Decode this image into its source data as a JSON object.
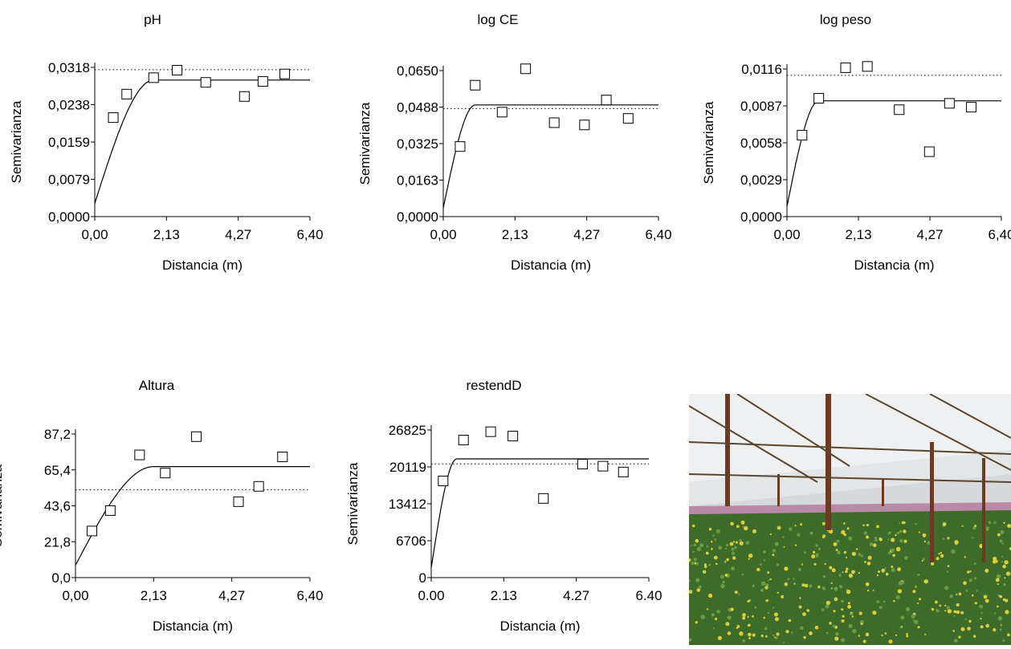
{
  "chart_data": [
    {
      "type": "scatter",
      "title": "pH",
      "xlabel": "Distancia (m)",
      "ylabel": "Semivarianza",
      "x_ticks": [
        "0,00",
        "2,13",
        "4,27",
        "6,40"
      ],
      "y_ticks": [
        "0,0000",
        "0,0079",
        "0,0159",
        "0,0238",
        "0,0318"
      ],
      "xlim": [
        0,
        6.4
      ],
      "ylim": [
        0,
        0.0318
      ],
      "points": [
        [
          0.55,
          0.0211
        ],
        [
          0.95,
          0.0261
        ],
        [
          1.75,
          0.0296
        ],
        [
          2.45,
          0.0312
        ],
        [
          3.3,
          0.0286
        ],
        [
          4.45,
          0.0256
        ],
        [
          5.0,
          0.0288
        ],
        [
          5.65,
          0.0304
        ]
      ],
      "model": {
        "nugget": 0.0028,
        "sill": 0.0291,
        "range": 1.75
      },
      "reference_line": 0.0313
    },
    {
      "type": "scatter",
      "title": "log CE",
      "xlabel": "Distancia (m)",
      "ylabel": "Semivarianza",
      "x_ticks": [
        "0,00",
        "2,13",
        "4,27",
        "6,40"
      ],
      "y_ticks": [
        "0,0000",
        "0,0163",
        "0,0325",
        "0,0488",
        "0,0650"
      ],
      "xlim": [
        0,
        6.4
      ],
      "ylim": [
        0,
        0.065
      ],
      "points": [
        [
          0.5,
          0.0312
        ],
        [
          0.95,
          0.0585
        ],
        [
          1.75,
          0.0465
        ],
        [
          2.45,
          0.0658
        ],
        [
          3.3,
          0.0418
        ],
        [
          4.2,
          0.0408
        ],
        [
          4.85,
          0.0519
        ],
        [
          5.5,
          0.0437
        ]
      ],
      "model": {
        "nugget": 0.0038,
        "sill": 0.0497,
        "range": 0.95
      },
      "reference_line": 0.0481
    },
    {
      "type": "scatter",
      "title": "log peso",
      "xlabel": "Distancia (m)",
      "ylabel": "Semivarianza",
      "x_ticks": [
        "0,00",
        "2,13",
        "4,27",
        "6,40"
      ],
      "y_ticks": [
        "0,0000",
        "0,0029",
        "0,0058",
        "0,0087",
        "0,0116"
      ],
      "xlim": [
        0,
        6.4
      ],
      "ylim": [
        0,
        0.0116
      ],
      "points": [
        [
          0.45,
          0.0064
        ],
        [
          0.95,
          0.0093
        ],
        [
          1.75,
          0.0117
        ],
        [
          2.4,
          0.0118
        ],
        [
          3.35,
          0.0084
        ],
        [
          4.25,
          0.0051
        ],
        [
          4.85,
          0.0089
        ],
        [
          5.5,
          0.0086
        ]
      ],
      "model": {
        "nugget": 0.0008,
        "sill": 0.0091,
        "range": 0.95
      },
      "reference_line": 0.0111
    },
    {
      "type": "scatter",
      "title": "Altura",
      "xlabel": "Distancia (m)",
      "ylabel": "Semivarianza",
      "x_ticks": [
        "0,00",
        "2,13",
        "4,27",
        "6,40"
      ],
      "y_ticks": [
        "0,0",
        "21,8",
        "43,6",
        "65,4",
        "87,2"
      ],
      "xlim": [
        0,
        6.4
      ],
      "ylim": [
        0,
        87.2
      ],
      "points": [
        [
          0.45,
          28.3
        ],
        [
          0.95,
          40.7
        ],
        [
          1.75,
          74.5
        ],
        [
          2.45,
          63.5
        ],
        [
          3.3,
          85.6
        ],
        [
          4.45,
          46.1
        ],
        [
          5.0,
          55.4
        ],
        [
          5.65,
          73.3
        ]
      ],
      "model": {
        "nugget": 7.5,
        "sill": 67.4,
        "range": 2.13
      },
      "reference_line": 53.3
    },
    {
      "type": "scatter",
      "title": "restendD",
      "xlabel": "Distancia (m)",
      "ylabel": "Semivarianza",
      "x_ticks": [
        "0.00",
        "2.13",
        "4.27",
        "6.40"
      ],
      "y_ticks": [
        "0",
        "6706",
        "13412",
        "20119",
        "26825"
      ],
      "xlim": [
        0,
        6.4
      ],
      "ylim": [
        0,
        26825
      ],
      "points": [
        [
          0.35,
          17566
        ],
        [
          0.95,
          25007
        ],
        [
          1.75,
          26510
        ],
        [
          2.4,
          25716
        ],
        [
          3.3,
          14386
        ],
        [
          4.45,
          20635
        ],
        [
          5.05,
          20248
        ],
        [
          5.65,
          19193
        ]
      ],
      "model": {
        "nugget": 1800,
        "sill": 21580,
        "range": 0.75
      },
      "reference_line": 20663
    }
  ],
  "photo": {
    "colors": {
      "sky": "#d6d9dc",
      "roof": "#eef0f1",
      "post": "#6a3b22",
      "foliage": "#3e6a2a",
      "flowers": "#d9cf3c"
    }
  }
}
